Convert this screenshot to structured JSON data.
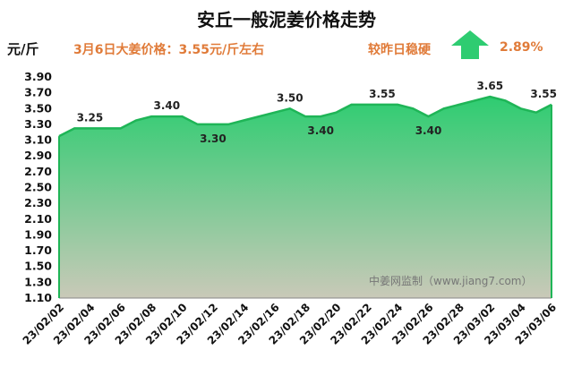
{
  "chart_data": {
    "type": "area",
    "title": "安丘一般泥姜价格走势",
    "ylabel": "元/斤",
    "xlabel": "",
    "ylim": [
      1.1,
      3.9
    ],
    "yticks": [
      1.1,
      1.3,
      1.5,
      1.7,
      1.9,
      2.1,
      2.3,
      2.5,
      2.7,
      2.9,
      3.1,
      3.3,
      3.5,
      3.7,
      3.9
    ],
    "grid": false,
    "x": [
      "23/02/02",
      "23/02/03",
      "23/02/04",
      "23/02/05",
      "23/02/06",
      "23/02/07",
      "23/02/08",
      "23/02/09",
      "23/02/10",
      "23/02/11",
      "23/02/12",
      "23/02/13",
      "23/02/14",
      "23/02/15",
      "23/02/16",
      "23/02/17",
      "23/02/18",
      "23/02/19",
      "23/02/20",
      "23/02/21",
      "23/02/22",
      "23/02/23",
      "23/02/24",
      "23/02/25",
      "23/02/26",
      "23/02/27",
      "23/02/28",
      "23/03/01",
      "23/03/02",
      "23/03/03",
      "23/03/04",
      "23/03/05",
      "23/03/06"
    ],
    "xtick_labels": [
      "23/02/02",
      "23/02/04",
      "23/02/06",
      "23/02/08",
      "23/02/10",
      "23/02/12",
      "23/02/14",
      "23/02/16",
      "23/02/18",
      "23/02/20",
      "23/02/22",
      "23/02/24",
      "23/02/26",
      "23/02/28",
      "23/03/02",
      "23/03/04",
      "23/03/06"
    ],
    "values": [
      3.15,
      3.25,
      3.25,
      3.25,
      3.25,
      3.35,
      3.4,
      3.4,
      3.4,
      3.3,
      3.3,
      3.3,
      3.35,
      3.4,
      3.45,
      3.5,
      3.4,
      3.4,
      3.45,
      3.55,
      3.55,
      3.55,
      3.55,
      3.5,
      3.4,
      3.5,
      3.55,
      3.6,
      3.65,
      3.6,
      3.5,
      3.45,
      3.55
    ],
    "data_labels": [
      {
        "index": 2,
        "text": "3.25",
        "pos": "above"
      },
      {
        "index": 7,
        "text": "3.40",
        "pos": "above"
      },
      {
        "index": 10,
        "text": "3.30",
        "pos": "below"
      },
      {
        "index": 15,
        "text": "3.50",
        "pos": "above"
      },
      {
        "index": 17,
        "text": "3.40",
        "pos": "below"
      },
      {
        "index": 21,
        "text": "3.55",
        "pos": "above"
      },
      {
        "index": 24,
        "text": "3.40",
        "pos": "below"
      },
      {
        "index": 28,
        "text": "3.65",
        "pos": "above"
      },
      {
        "index": 32,
        "text": "3.55",
        "pos": "above"
      }
    ],
    "colors": {
      "line": "#1fb557",
      "fill_top": "#2ecc71",
      "fill_bottom": "#c9c9b8",
      "accent": "#e07b39"
    }
  },
  "header": {
    "unit": "元/斤",
    "price_note": "3月6日大姜价格：3.55元/斤左右",
    "compare_note": "较昨日稳硬",
    "change_pct": "2.89%",
    "arrow_icon": "up-arrow-icon"
  },
  "watermark": "中姜网监制（www.jiang7.com）"
}
